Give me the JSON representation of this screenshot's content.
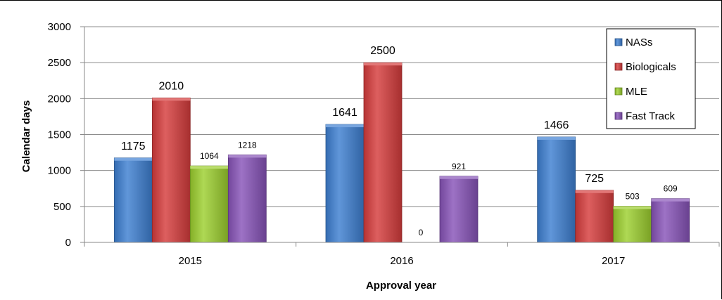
{
  "chart_data": {
    "type": "bar",
    "categories": [
      "2015",
      "2016",
      "2017"
    ],
    "series": [
      {
        "name": "NASs",
        "values": [
          1175,
          1641,
          1466
        ],
        "color": "#3d7fd1",
        "labels": [
          "1175",
          "1641",
          "1466"
        ]
      },
      {
        "name": "Biologicals",
        "values": [
          2010,
          2500,
          725
        ],
        "color": "#d63c3c",
        "labels": [
          "2010",
          "2500",
          "725"
        ]
      },
      {
        "name": "MLE",
        "values": [
          1064,
          0,
          503
        ],
        "color": "#9ccf2e",
        "labels": [
          "1064",
          "0",
          "503"
        ]
      },
      {
        "name": "Fast Track",
        "values": [
          1218,
          921,
          609
        ],
        "color": "#8753b8",
        "labels": [
          "1218",
          "921",
          "609"
        ]
      }
    ],
    "xlabel": "Approval year",
    "ylabel": "Calendar days",
    "ylim": [
      0,
      3000
    ],
    "yticks": [
      "0",
      "500",
      "1000",
      "1500",
      "2000",
      "2500",
      "3000"
    ],
    "grid": true,
    "legend_position": "top-right"
  }
}
